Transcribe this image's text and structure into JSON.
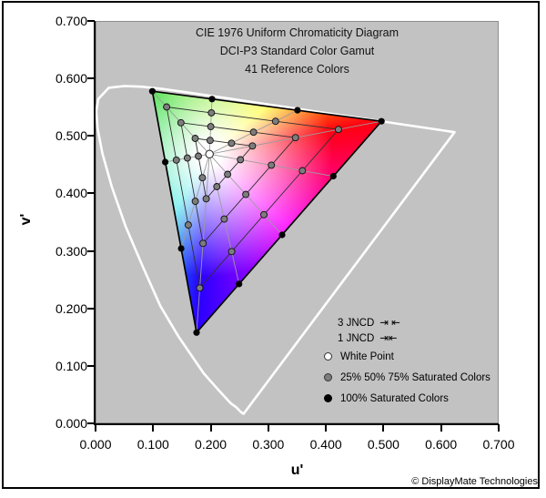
{
  "title_lines": [
    "CIE 1976 Uniform Chromaticity Diagram",
    "DCI-P3 Standard Color Gamut",
    "41 Reference Colors"
  ],
  "axes": {
    "x": {
      "label": "u'",
      "ticks": [
        "0.000",
        "0.100",
        "0.200",
        "0.300",
        "0.400",
        "0.500",
        "0.600",
        "0.700"
      ],
      "min": 0.0,
      "max": 0.7
    },
    "y": {
      "label": "v'",
      "ticks": [
        "0.000",
        "0.100",
        "0.200",
        "0.300",
        "0.400",
        "0.500",
        "0.600",
        "0.700"
      ],
      "min": 0.0,
      "max": 0.7
    }
  },
  "legend": {
    "jncd": [
      {
        "label": "3 JNCD",
        "marker": "⇥ ⇤"
      },
      {
        "label": "1 JNCD",
        "marker": "⇥⇤"
      }
    ],
    "entries": [
      {
        "label": "White Point",
        "swatch": "#ffffff"
      },
      {
        "label": "25% 50% 75% Saturated Colors",
        "swatch": "#7d7d7d"
      },
      {
        "label": "100% Saturated Colors",
        "swatch": "#000000"
      }
    ]
  },
  "copyright": "© DisplayMate Technologies",
  "chart_data": {
    "type": "scatter",
    "title": "CIE 1976 Uniform Chromaticity Diagram",
    "subtitle": "DCI-P3 Standard Color Gamut",
    "annotation": "41 Reference Colors",
    "xlabel": "u'",
    "ylabel": "v'",
    "xlim": [
      0.0,
      0.7
    ],
    "ylim": [
      0.0,
      0.7
    ],
    "grid": false,
    "plot_bg": "#c2c2c2",
    "locus_color": "#ffffff",
    "white_point": {
      "u": 0.1978,
      "v": 0.4683
    },
    "gamut_primaries": {
      "green": [
        0.0986,
        0.5777
      ],
      "red": [
        0.4964,
        0.5255
      ],
      "blue": [
        0.1754,
        0.1579
      ]
    },
    "saturation_levels": [
      0.25,
      0.5,
      0.75,
      1.0
    ],
    "reference_hues": [
      {
        "name": "green",
        "u": 0.0986,
        "v": 0.5777
      },
      {
        "name": "yellow-green",
        "u": 0.2022,
        "v": 0.5641
      },
      {
        "name": "orange",
        "u": 0.3507,
        "v": 0.5446
      },
      {
        "name": "red",
        "u": 0.4964,
        "v": 0.5255
      },
      {
        "name": "red-magenta",
        "u": 0.4129,
        "v": 0.4299
      },
      {
        "name": "magenta",
        "u": 0.3239,
        "v": 0.3279
      },
      {
        "name": "purple",
        "u": 0.2492,
        "v": 0.2424
      },
      {
        "name": "blue",
        "u": 0.1754,
        "v": 0.1579
      },
      {
        "name": "blue-cyan",
        "u": 0.1487,
        "v": 0.3041
      },
      {
        "name": "cyan",
        "u": 0.1211,
        "v": 0.4546
      }
    ],
    "spectral_locus": [
      [
        0.2569,
        0.0165
      ],
      [
        0.2522,
        0.0198
      ],
      [
        0.2443,
        0.028
      ],
      [
        0.2347,
        0.035
      ],
      [
        0.2161,
        0.0549
      ],
      [
        0.1877,
        0.0871
      ],
      [
        0.1441,
        0.151
      ],
      [
        0.1126,
        0.2038
      ],
      [
        0.0828,
        0.2708
      ],
      [
        0.0521,
        0.3427
      ],
      [
        0.0282,
        0.4117
      ],
      [
        0.0119,
        0.4698
      ],
      [
        0.0035,
        0.5131
      ],
      [
        0.0014,
        0.5432
      ],
      [
        0.0046,
        0.5639
      ],
      [
        0.0231,
        0.5837
      ],
      [
        0.0501,
        0.5868
      ],
      [
        0.0792,
        0.5856
      ],
      [
        0.1127,
        0.5821
      ],
      [
        0.1531,
        0.5766
      ],
      [
        0.2026,
        0.5694
      ],
      [
        0.2623,
        0.5604
      ],
      [
        0.3315,
        0.5501
      ],
      [
        0.4035,
        0.5393
      ],
      [
        0.4691,
        0.5296
      ],
      [
        0.5203,
        0.5219
      ],
      [
        0.5565,
        0.5165
      ],
      [
        0.583,
        0.5125
      ],
      [
        0.6005,
        0.5099
      ],
      [
        0.6234,
        0.5065
      ]
    ],
    "hue_anchor_colors": {
      "green": "#00d400",
      "yellow": "#ffff00",
      "red": "#ff0012",
      "magenta": "#ff00ff",
      "blue": "#2a00ff",
      "cyan": "#00e0e0"
    }
  }
}
